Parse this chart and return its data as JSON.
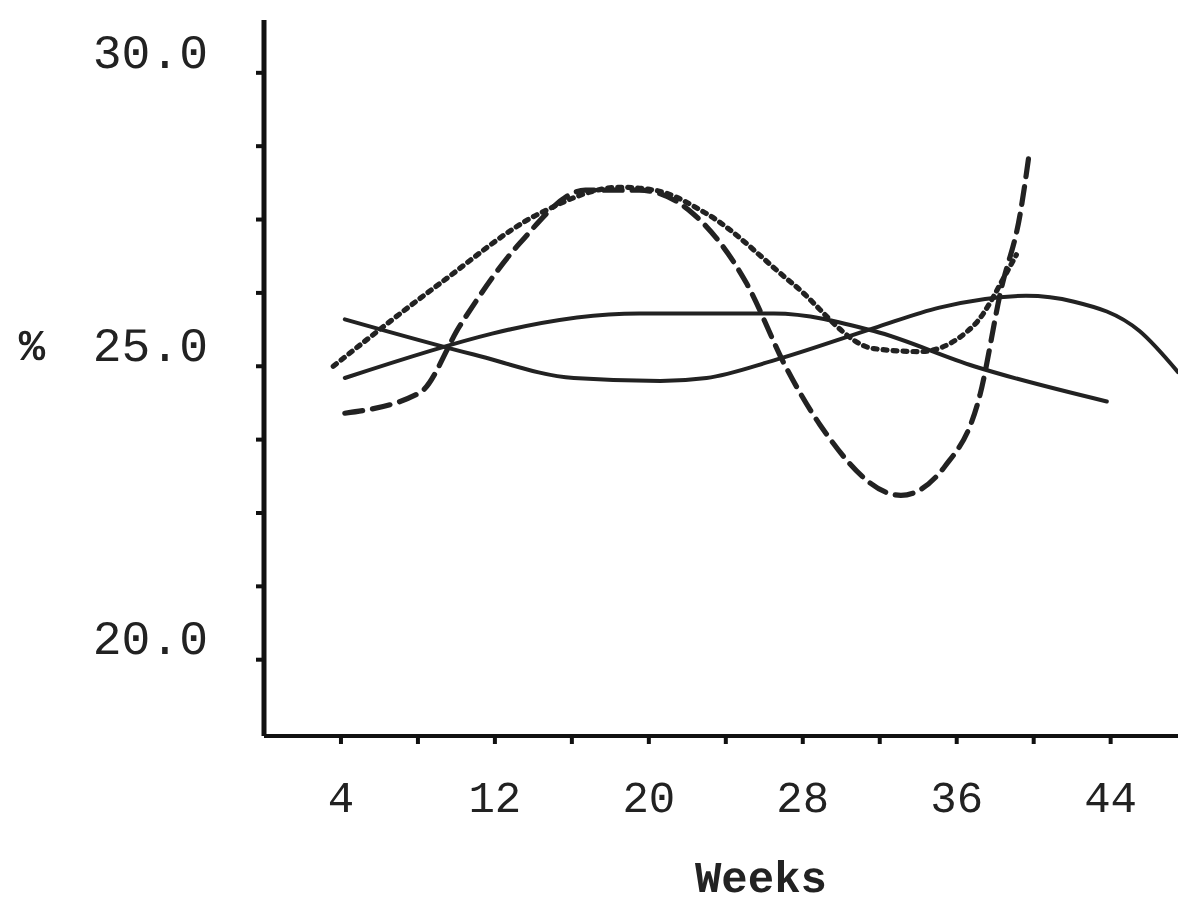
{
  "chart_data": {
    "type": "line",
    "xlabel": "Weeks",
    "ylabel": "%",
    "xlim": [
      0,
      47.5
    ],
    "ylim": [
      18.7,
      30.9
    ],
    "xticks": [
      {
        "value": 4,
        "label": "4"
      },
      {
        "value": 8,
        "label": null
      },
      {
        "value": 12,
        "label": "12"
      },
      {
        "value": 16,
        "label": null
      },
      {
        "value": 20,
        "label": "20"
      },
      {
        "value": 24,
        "label": null
      },
      {
        "value": 28,
        "label": "28"
      },
      {
        "value": 32,
        "label": null
      },
      {
        "value": 36,
        "label": "36"
      },
      {
        "value": 40,
        "label": null
      },
      {
        "value": 44,
        "label": "44"
      }
    ],
    "yticks": [
      {
        "value": 20,
        "label": "20.0"
      },
      {
        "value": 21.25,
        "label": null
      },
      {
        "value": 22.5,
        "label": null
      },
      {
        "value": 23.75,
        "label": null
      },
      {
        "value": 25,
        "label": "25.0"
      },
      {
        "value": 26.25,
        "label": null
      },
      {
        "value": 27.5,
        "label": null
      },
      {
        "value": 28.75,
        "label": null
      },
      {
        "value": 30,
        "label": "30.0"
      }
    ],
    "grid": false,
    "series": [
      {
        "color": "#222222",
        "line_style": "solid",
        "x": [
          4.2,
          10.9,
          16.1,
          20.6,
          23,
          26.5,
          31.7,
          35.1,
          39.6,
          42.1,
          45.5,
          47.5
        ],
        "values": [
          25.8,
          25.2,
          24.8,
          24.75,
          24.8,
          25.1,
          25.65,
          26,
          26.2,
          26.1,
          25.6,
          24.9
        ]
      },
      {
        "color": "#222222",
        "line_style": "solid",
        "x": [
          4.2,
          19.5,
          26.5,
          31.7,
          36.9,
          43.8
        ],
        "values": [
          24.8,
          25.9,
          25.9,
          25.6,
          25,
          24.4
        ]
      },
      {
        "color": "#222222",
        "line_style": "dotted",
        "x": [
          3.6,
          9.1,
          14.3,
          18.5,
          20.3,
          23,
          27.5,
          31.7,
          34.1,
          36.9,
          38.6,
          39.1
        ],
        "values": [
          25,
          26.4,
          27.6,
          28.05,
          28,
          27.6,
          26.4,
          25.3,
          25.25,
          25.7,
          26.6,
          26.9
        ]
      },
      {
        "color": "#222222",
        "line_style": "dashed",
        "x": [
          4.2,
          8.1,
          10.2,
          13.3,
          16.7,
          19.5,
          22.3,
          25.1,
          27.1,
          28.9,
          33.1,
          35.4,
          37.2,
          38.3,
          39.3,
          39.8
        ],
        "values": [
          24.2,
          24.55,
          25.7,
          27.1,
          28,
          28,
          27.6,
          26.4,
          25,
          24,
          22.8,
          23.3,
          24.5,
          26.3,
          27.6,
          28.7
        ]
      }
    ]
  }
}
